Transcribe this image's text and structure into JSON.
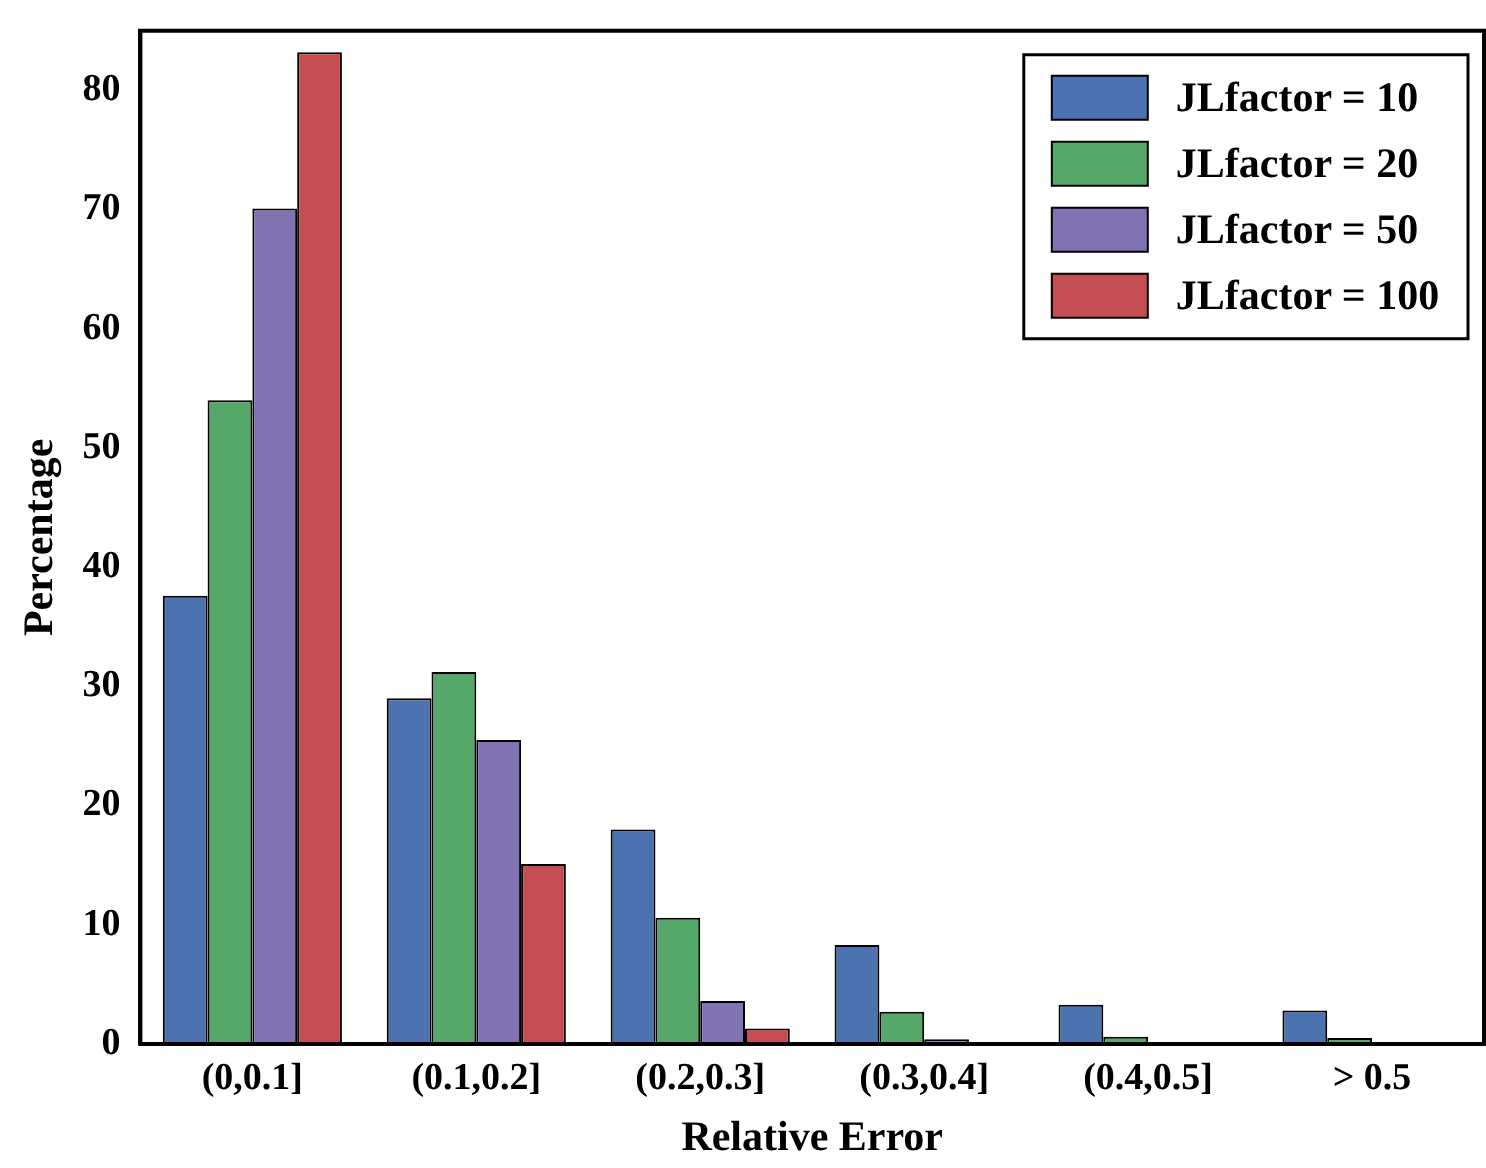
{
  "chart_data": {
    "type": "bar",
    "xlabel": "Relative Error",
    "ylabel": "Percentage",
    "categories": [
      "(0,0.1]",
      "(0.1,0.2]",
      "(0.2,0.3]",
      "(0.3,0.4]",
      "(0.4,0.5]",
      "> 0.5"
    ],
    "series": [
      {
        "name": "JLfactor = 10",
        "color": "#4c72b0",
        "values": [
          37.6,
          29.0,
          18.0,
          8.3,
          3.3,
          2.8
        ]
      },
      {
        "name": "JLfactor = 20",
        "color": "#55a868",
        "values": [
          54.0,
          31.2,
          10.6,
          2.7,
          0.6,
          0.5
        ]
      },
      {
        "name": "JLfactor = 50",
        "color": "#8172b2",
        "values": [
          70.1,
          25.5,
          3.6,
          0.4,
          0,
          0
        ]
      },
      {
        "name": "JLfactor = 100",
        "color": "#c44e52",
        "values": [
          83.2,
          15.1,
          1.3,
          0,
          0,
          0
        ]
      }
    ],
    "ylim": [
      0,
      85
    ],
    "yticks": [
      0,
      10,
      20,
      30,
      40,
      50,
      60,
      70,
      80
    ],
    "grid": false,
    "legend": "top right"
  }
}
